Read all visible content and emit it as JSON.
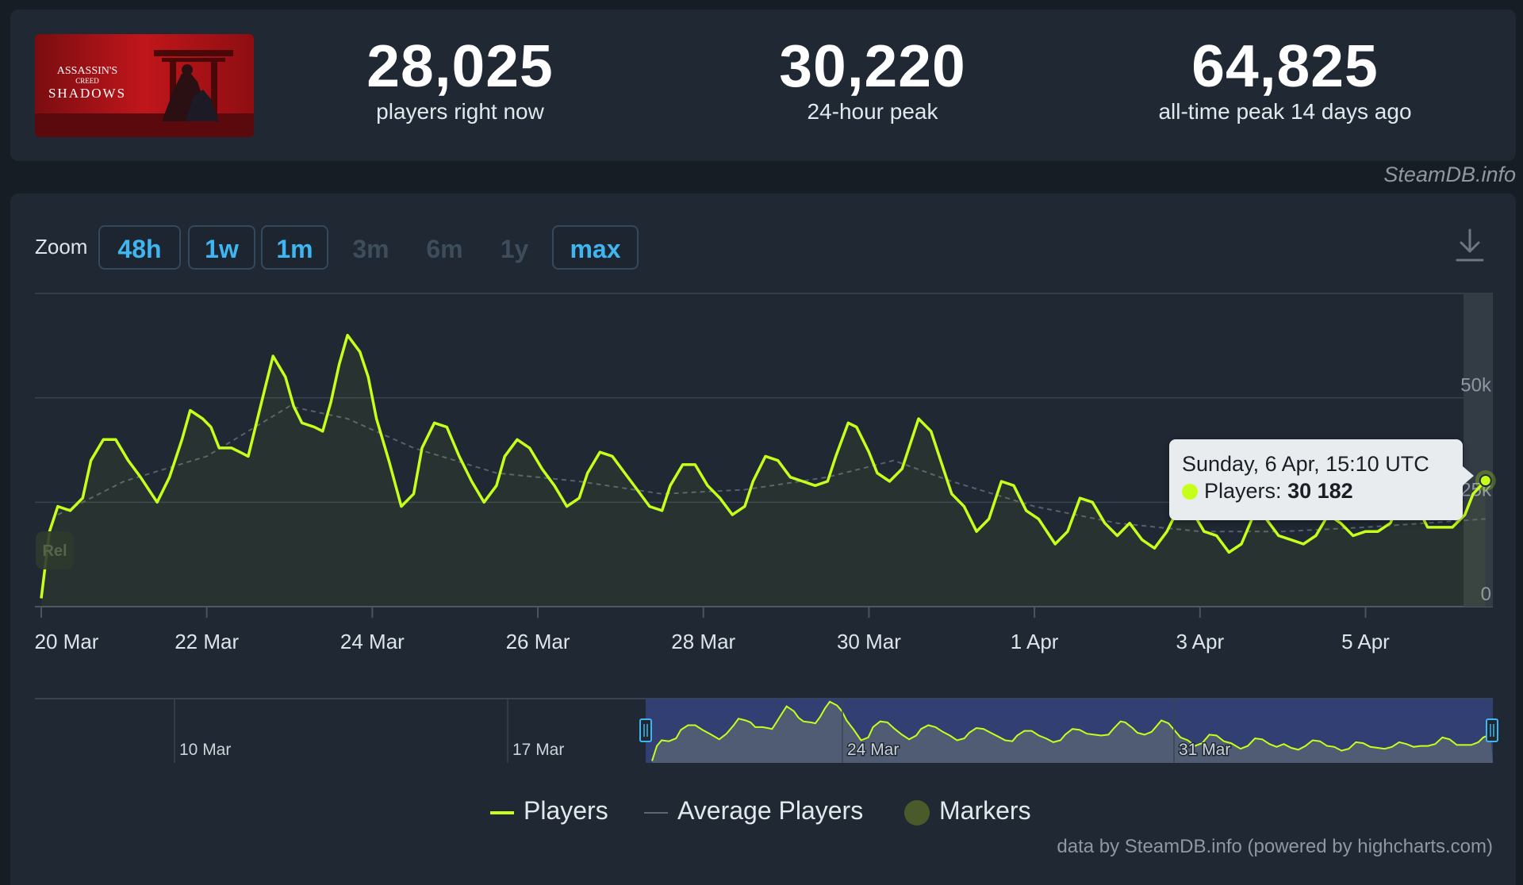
{
  "stats": {
    "current": {
      "value": "28,025",
      "label": "players right now"
    },
    "peak24": {
      "value": "30,220",
      "label": "24-hour peak"
    },
    "alltime": {
      "value": "64,825",
      "label": "all-time peak 14 days ago"
    }
  },
  "game_art": {
    "line1": "ASSASSIN'S",
    "line2": "CREED",
    "line3": "SHADOWS"
  },
  "credit_top": "SteamDB.info",
  "credit_bottom": "data by SteamDB.info (powered by highcharts.com)",
  "zoom": {
    "label": "Zoom",
    "buttons": [
      {
        "label": "48h",
        "enabled": true
      },
      {
        "label": "1w",
        "enabled": true
      },
      {
        "label": "1m",
        "enabled": true
      },
      {
        "label": "3m",
        "enabled": false
      },
      {
        "label": "6m",
        "enabled": false
      },
      {
        "label": "1y",
        "enabled": false
      },
      {
        "label": "max",
        "enabled": true
      }
    ]
  },
  "tooltip": {
    "date": "Sunday, 6 Apr, 15:10 UTC",
    "series": "Players:",
    "value": "30 182"
  },
  "legend": {
    "players": "Players",
    "average": "Average Players",
    "markers": "Markers"
  },
  "release_marker": "Rel",
  "colors": {
    "players": "#c6ff1a",
    "average": "#5c6770",
    "marker": "#4a5a2a",
    "navigator_selection": "#33417a"
  },
  "chart_data": {
    "type": "line",
    "x_unit": "days since 20 Mar",
    "x_tick_labels": [
      "20 Mar",
      "22 Mar",
      "24 Mar",
      "26 Mar",
      "28 Mar",
      "30 Mar",
      "1 Apr",
      "3 Apr",
      "5 Apr"
    ],
    "x_tick_positions": [
      0,
      2,
      4,
      6,
      8,
      10,
      12,
      14,
      16
    ],
    "y_tick_labels": [
      "0",
      "25k",
      "50k"
    ],
    "y_tick_values": [
      0,
      25000,
      50000
    ],
    "ylim": [
      0,
      75000
    ],
    "xlim": [
      0,
      17.5
    ],
    "series": [
      {
        "name": "Players",
        "points": [
          [
            0,
            2000
          ],
          [
            0.1,
            18000
          ],
          [
            0.2,
            24000
          ],
          [
            0.35,
            23000
          ],
          [
            0.5,
            26000
          ],
          [
            0.6,
            35000
          ],
          [
            0.75,
            40000
          ],
          [
            0.9,
            40000
          ],
          [
            1.05,
            35000
          ],
          [
            1.2,
            31000
          ],
          [
            1.3,
            28000
          ],
          [
            1.4,
            25000
          ],
          [
            1.55,
            31000
          ],
          [
            1.7,
            40000
          ],
          [
            1.8,
            47000
          ],
          [
            1.95,
            45000
          ],
          [
            2.05,
            43000
          ],
          [
            2.15,
            38000
          ],
          [
            2.3,
            38000
          ],
          [
            2.4,
            37000
          ],
          [
            2.5,
            36000
          ],
          [
            2.6,
            44000
          ],
          [
            2.7,
            52000
          ],
          [
            2.8,
            60000
          ],
          [
            2.95,
            55000
          ],
          [
            3.05,
            48000
          ],
          [
            3.15,
            44000
          ],
          [
            3.3,
            43000
          ],
          [
            3.4,
            42000
          ],
          [
            3.5,
            49000
          ],
          [
            3.6,
            58000
          ],
          [
            3.7,
            65000
          ],
          [
            3.85,
            61000
          ],
          [
            3.95,
            55000
          ],
          [
            4.05,
            45000
          ],
          [
            4.2,
            35000
          ],
          [
            4.35,
            24000
          ],
          [
            4.5,
            27000
          ],
          [
            4.6,
            38000
          ],
          [
            4.75,
            44000
          ],
          [
            4.9,
            43000
          ],
          [
            5.05,
            36000
          ],
          [
            5.2,
            30000
          ],
          [
            5.35,
            25000
          ],
          [
            5.5,
            29000
          ],
          [
            5.6,
            36000
          ],
          [
            5.75,
            40000
          ],
          [
            5.9,
            38000
          ],
          [
            6.05,
            33000
          ],
          [
            6.2,
            29000
          ],
          [
            6.35,
            24000
          ],
          [
            6.5,
            26000
          ],
          [
            6.6,
            32000
          ],
          [
            6.75,
            37000
          ],
          [
            6.9,
            36000
          ],
          [
            7.05,
            32000
          ],
          [
            7.2,
            28000
          ],
          [
            7.35,
            24000
          ],
          [
            7.5,
            23000
          ],
          [
            7.6,
            29000
          ],
          [
            7.75,
            34000
          ],
          [
            7.9,
            34000
          ],
          [
            8.05,
            29000
          ],
          [
            8.2,
            26000
          ],
          [
            8.35,
            22000
          ],
          [
            8.5,
            24000
          ],
          [
            8.6,
            30000
          ],
          [
            8.75,
            36000
          ],
          [
            8.9,
            35000
          ],
          [
            9.05,
            31000
          ],
          [
            9.2,
            30000
          ],
          [
            9.35,
            29000
          ],
          [
            9.5,
            30000
          ],
          [
            9.6,
            36000
          ],
          [
            9.75,
            44000
          ],
          [
            9.85,
            43000
          ],
          [
            10.0,
            37000
          ],
          [
            10.1,
            32000
          ],
          [
            10.25,
            30000
          ],
          [
            10.4,
            33000
          ],
          [
            10.5,
            39000
          ],
          [
            10.6,
            45000
          ],
          [
            10.75,
            42000
          ],
          [
            10.85,
            36000
          ],
          [
            11.0,
            27000
          ],
          [
            11.15,
            24000
          ],
          [
            11.3,
            18000
          ],
          [
            11.45,
            21000
          ],
          [
            11.6,
            30000
          ],
          [
            11.75,
            29000
          ],
          [
            11.9,
            23000
          ],
          [
            12.05,
            21000
          ],
          [
            12.25,
            15000
          ],
          [
            12.4,
            18000
          ],
          [
            12.55,
            26000
          ],
          [
            12.7,
            25000
          ],
          [
            12.85,
            20000
          ],
          [
            13.0,
            17000
          ],
          [
            13.15,
            20000
          ],
          [
            13.3,
            16000
          ],
          [
            13.45,
            14000
          ],
          [
            13.6,
            18000
          ],
          [
            13.75,
            24000
          ],
          [
            13.9,
            23000
          ],
          [
            14.05,
            18000
          ],
          [
            14.2,
            17000
          ],
          [
            14.35,
            13000
          ],
          [
            14.5,
            15000
          ],
          [
            14.65,
            22000
          ],
          [
            14.8,
            21000
          ],
          [
            14.95,
            17000
          ],
          [
            15.1,
            16000
          ],
          [
            15.25,
            15000
          ],
          [
            15.4,
            17000
          ],
          [
            15.55,
            22000
          ],
          [
            15.7,
            20000
          ],
          [
            15.85,
            17000
          ],
          [
            16.0,
            18000
          ],
          [
            16.15,
            18000
          ],
          [
            16.3,
            20000
          ],
          [
            16.45,
            27000
          ],
          [
            16.6,
            25000
          ],
          [
            16.75,
            19000
          ],
          [
            16.9,
            19000
          ],
          [
            17.05,
            19000
          ],
          [
            17.2,
            22000
          ],
          [
            17.3,
            27000
          ],
          [
            17.45,
            30182
          ]
        ]
      },
      {
        "name": "Average Players",
        "points": [
          [
            0.2,
            22000
          ],
          [
            1.0,
            30000
          ],
          [
            2.0,
            36000
          ],
          [
            3.0,
            48000
          ],
          [
            3.7,
            45000
          ],
          [
            4.5,
            38000
          ],
          [
            5.5,
            32000
          ],
          [
            6.5,
            30000
          ],
          [
            7.5,
            27000
          ],
          [
            8.5,
            28000
          ],
          [
            9.5,
            31000
          ],
          [
            10.3,
            35000
          ],
          [
            11.0,
            30000
          ],
          [
            12.0,
            24000
          ],
          [
            13.0,
            20000
          ],
          [
            14.0,
            18000
          ],
          [
            15.0,
            18000
          ],
          [
            16.0,
            19000
          ],
          [
            17.45,
            21000
          ]
        ]
      }
    ],
    "navigator_tick_labels": [
      "10 Mar",
      "17 Mar",
      "24 Mar",
      "31 Mar"
    ]
  }
}
